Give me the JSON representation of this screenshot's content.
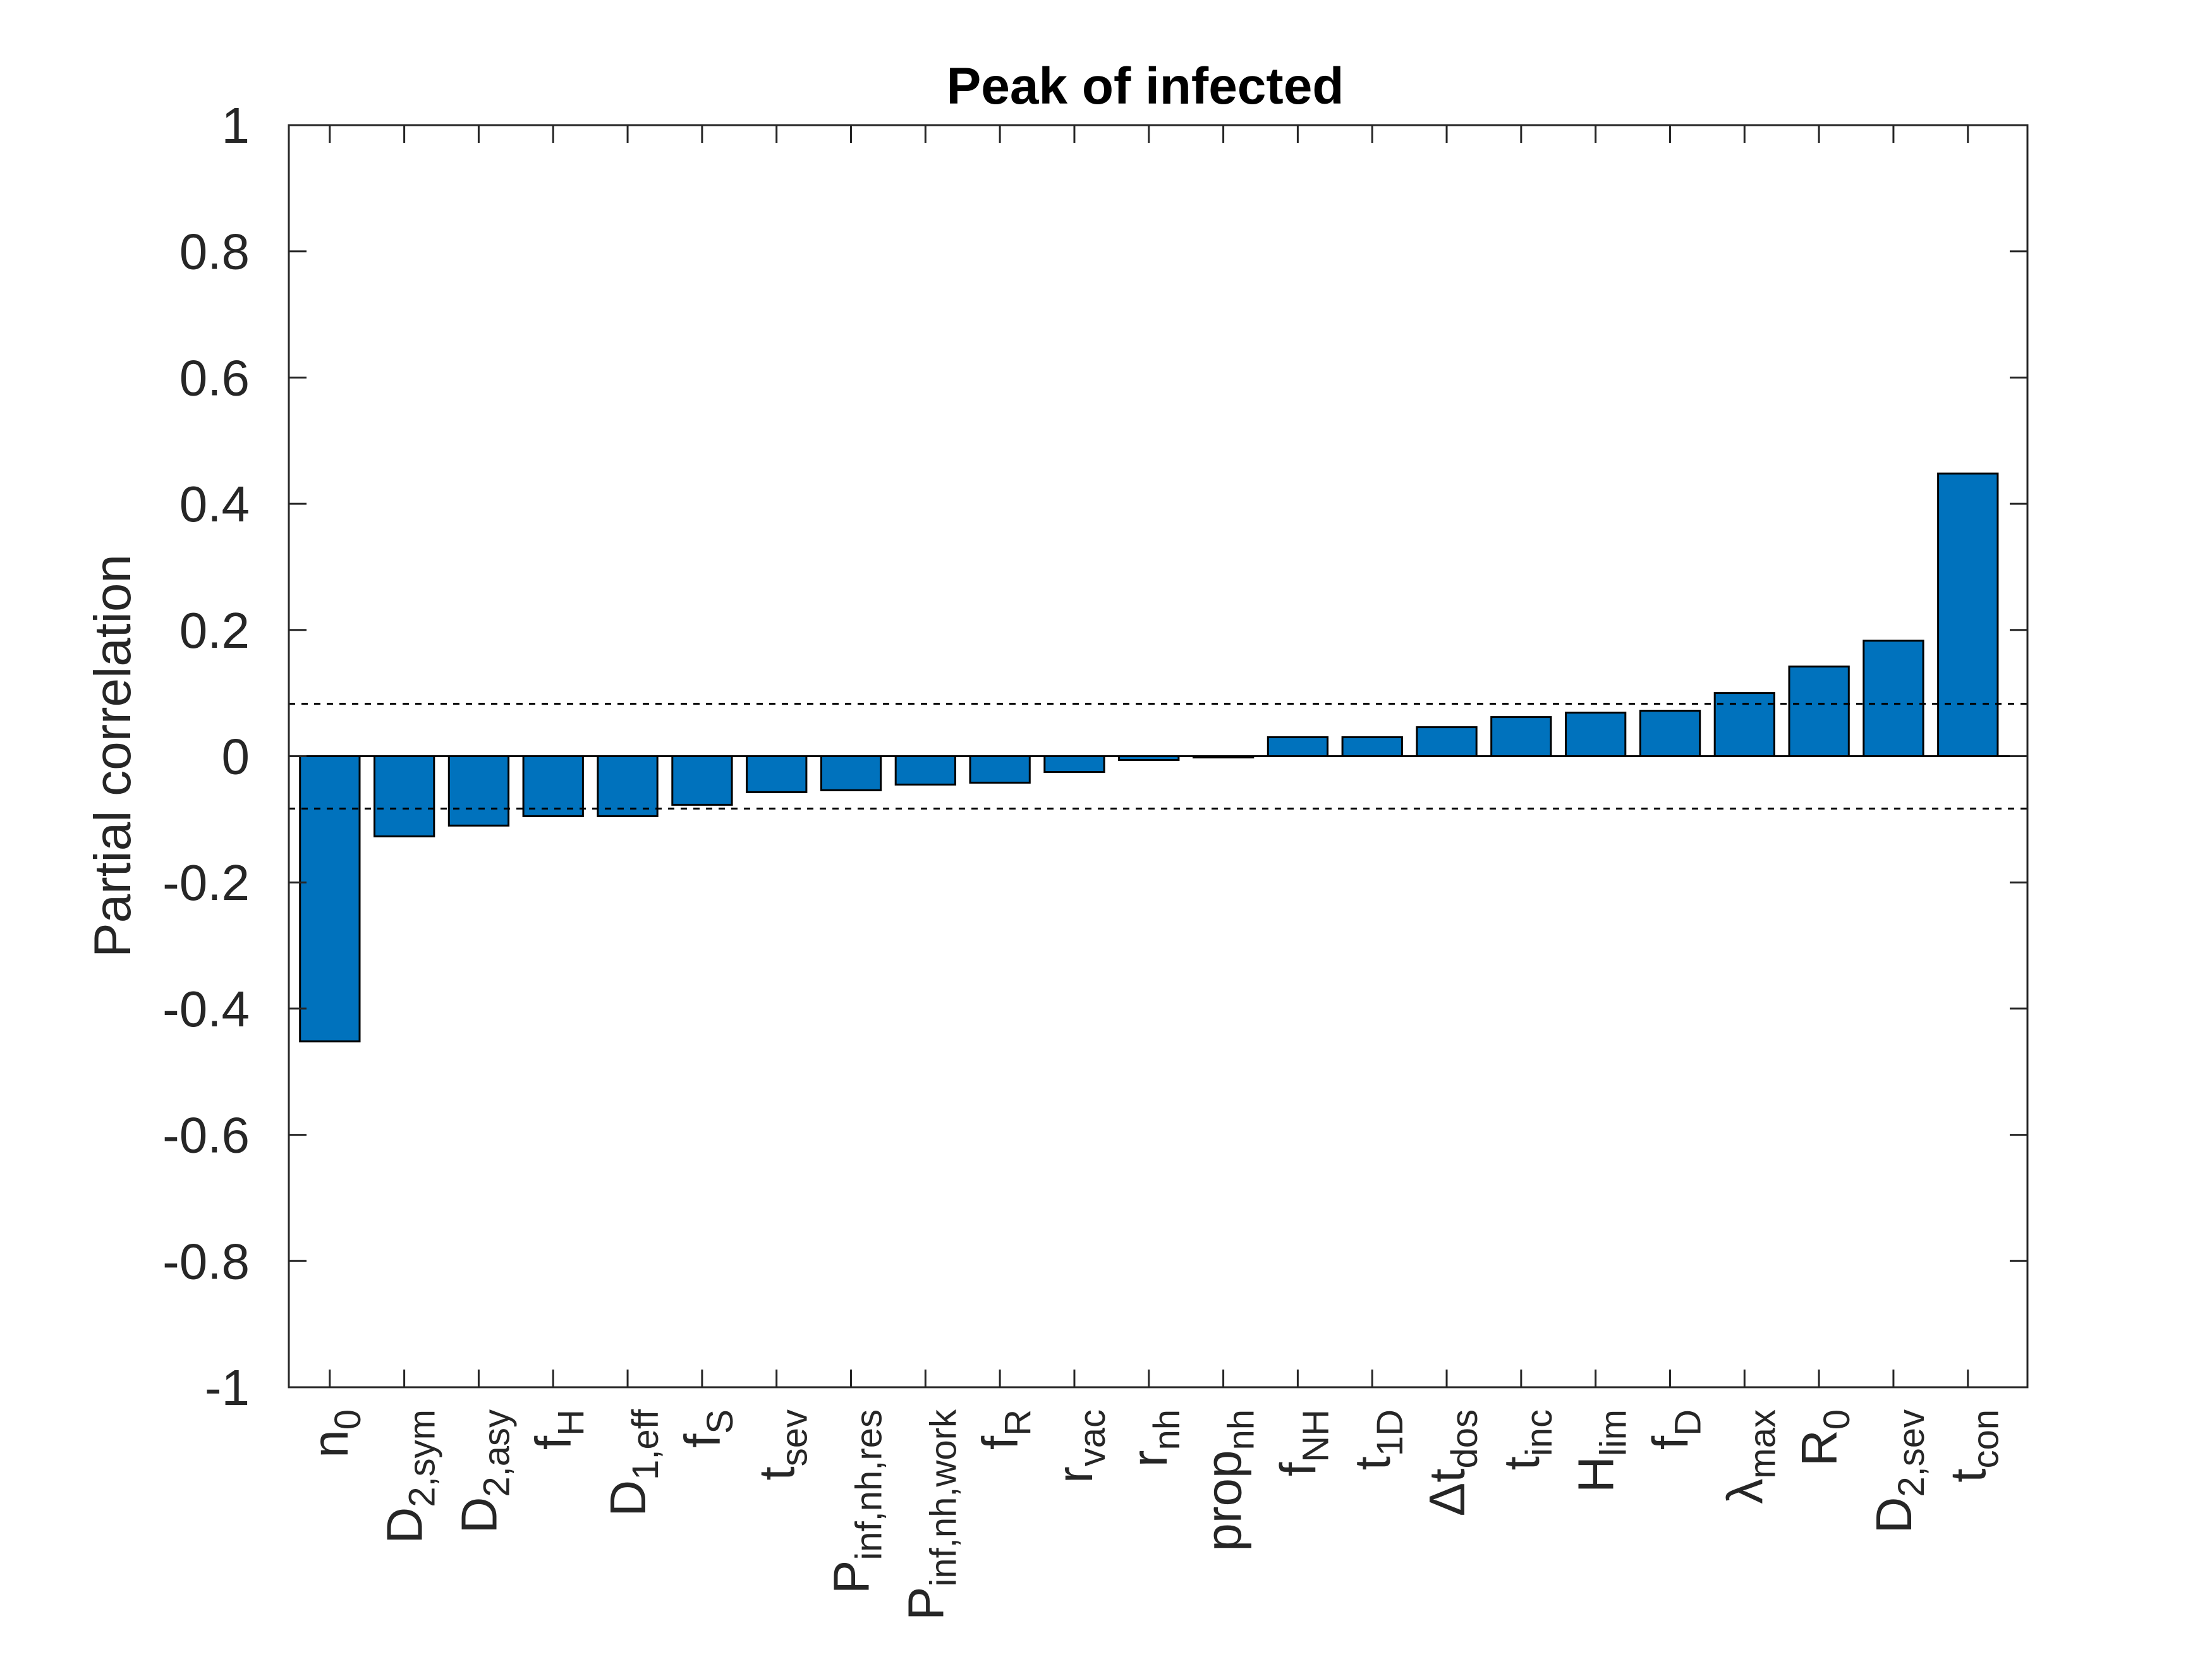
{
  "chart_data": {
    "type": "bar",
    "title": "Peak of infected",
    "xlabel": "",
    "ylabel": "Partial correlation",
    "ylim": [
      -1,
      1
    ],
    "yticks": [
      -1,
      -0.8,
      -0.6,
      -0.4,
      -0.2,
      0,
      0.2,
      0.4,
      0.6,
      0.8,
      1
    ],
    "ytick_labels": [
      "-1",
      "-0.8",
      "-0.6",
      "-0.4",
      "-0.2",
      "0",
      "0.2",
      "0.4",
      "0.6",
      "0.8",
      "1"
    ],
    "grid": false,
    "bar_color": "#0072BD",
    "edge_color": "#000000",
    "categories": [
      {
        "base": "n",
        "sub": "0"
      },
      {
        "base": "D",
        "sub": "2,sym"
      },
      {
        "base": "D",
        "sub": "2,asy"
      },
      {
        "base": "f",
        "sub": "H"
      },
      {
        "base": "D",
        "sub": "1,eff"
      },
      {
        "base": "f",
        "sub": "S"
      },
      {
        "base": "t",
        "sub": "sev"
      },
      {
        "base": "P",
        "sub": "inf,nh,res"
      },
      {
        "base": "P",
        "sub": "inf,nh,work"
      },
      {
        "base": "f",
        "sub": "R"
      },
      {
        "base": "r",
        "sub": "vac"
      },
      {
        "base": "r",
        "sub": "nh"
      },
      {
        "base": "prop",
        "sub": "nh"
      },
      {
        "base": "f",
        "sub": "NH"
      },
      {
        "base": "t",
        "sub": "1D"
      },
      {
        "base": "Δt",
        "sub": "dos"
      },
      {
        "base": "t",
        "sub": "inc"
      },
      {
        "base": "H",
        "sub": "lim"
      },
      {
        "base": "f",
        "sub": "D"
      },
      {
        "base": "λ",
        "sub": "max"
      },
      {
        "base": "R",
        "sub": "0"
      },
      {
        "base": "D",
        "sub": "2,sev"
      },
      {
        "base": "t",
        "sub": "con"
      }
    ],
    "values": [
      -0.452,
      -0.127,
      -0.11,
      -0.095,
      -0.095,
      -0.077,
      -0.057,
      -0.054,
      -0.045,
      -0.042,
      -0.025,
      -0.006,
      -0.002,
      0.03,
      0.03,
      0.046,
      0.062,
      0.069,
      0.072,
      0.1,
      0.142,
      0.183,
      0.448
    ],
    "threshold_lines": [
      0.083,
      -0.083
    ]
  }
}
